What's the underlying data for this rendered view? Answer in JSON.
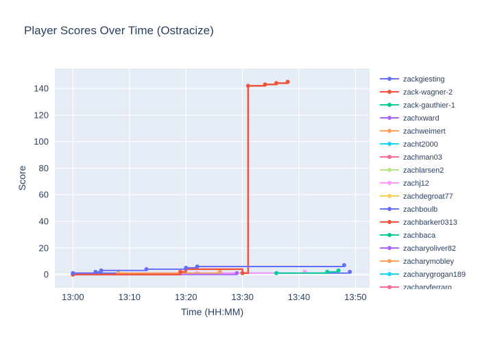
{
  "chart_data": {
    "type": "line",
    "title": "Player Scores Over Time (Ostracize)",
    "xlabel": "Time (HH:MM)",
    "ylabel": "Score",
    "x_ticks": [
      "13:00",
      "13:10",
      "13:20",
      "13:30",
      "13:40",
      "13:50"
    ],
    "y_ticks": [
      0,
      20,
      40,
      60,
      80,
      100,
      120,
      140
    ],
    "xlim_minutes": [
      -3.2,
      52.5
    ],
    "ylim": [
      -10,
      155
    ],
    "grid": true,
    "legend_position": "right",
    "colors": {
      "plot_bg": "#e5ecf6",
      "grid": "#ffffff",
      "text": "#2a3f5f",
      "palette": [
        "#636efa",
        "#ef553b",
        "#00cc96",
        "#ab63fa",
        "#ffa15a",
        "#19d3f3",
        "#ff6692",
        "#b6e880",
        "#ff97ff",
        "#fecb52"
      ]
    },
    "series": [
      {
        "name": "zackgiesting",
        "color": "#636efa",
        "x": [
          "13:00",
          "13:04",
          "13:05",
          "13:13",
          "13:20",
          "13:22",
          "13:48"
        ],
        "y": [
          1,
          2,
          3,
          4,
          5,
          6,
          7
        ]
      },
      {
        "name": "zack-wagner-2",
        "color": "#ef553b",
        "x": [
          "13:00",
          "13:19",
          "13:20",
          "13:30",
          "13:31",
          "13:34",
          "13:36",
          "13:38"
        ],
        "y": [
          0,
          2,
          4,
          1,
          142,
          143,
          144,
          145
        ]
      },
      {
        "name": "zack-gauthier-1",
        "color": "#00cc96",
        "x": [
          "13:36",
          "13:45",
          "13:47"
        ],
        "y": [
          1,
          2,
          3
        ]
      },
      {
        "name": "zachxward",
        "color": "#ab63fa",
        "x": [
          "13:00",
          "13:29"
        ],
        "y": [
          0,
          1
        ]
      },
      {
        "name": "zachweimert",
        "color": "#ffa15a",
        "x": [
          "13:00",
          "13:08",
          "13:26"
        ],
        "y": [
          0,
          1,
          2
        ]
      },
      {
        "name": "zacht2000",
        "color": "#19d3f3",
        "x": [
          "13:00",
          "13:19"
        ],
        "y": [
          0,
          1
        ]
      },
      {
        "name": "zachman03",
        "color": "#ff6692",
        "x": [
          "13:00"
        ],
        "y": [
          0
        ]
      },
      {
        "name": "zachlarsen2",
        "color": "#b6e880",
        "x": [
          "13:00"
        ],
        "y": [
          0
        ]
      },
      {
        "name": "zachj12",
        "color": "#ff97ff",
        "x": [
          "13:00",
          "13:22",
          "13:41"
        ],
        "y": [
          0,
          1,
          2
        ]
      },
      {
        "name": "zachdegroat77",
        "color": "#fecb52",
        "x": [
          "13:00"
        ],
        "y": [
          0
        ]
      },
      {
        "name": "zachboulb",
        "color": "#636efa",
        "x": [
          "13:00",
          "13:49"
        ],
        "y": [
          1,
          2
        ]
      },
      {
        "name": "zachbarker0313",
        "color": "#ef553b",
        "x": [
          "13:00"
        ],
        "y": [
          0
        ]
      },
      {
        "name": "zachbaca",
        "color": "#00cc96",
        "x": [
          "13:00"
        ],
        "y": [
          0
        ]
      },
      {
        "name": "zacharyoliver82",
        "color": "#ab63fa",
        "x": [
          "13:00"
        ],
        "y": [
          0
        ]
      },
      {
        "name": "zacharymobley",
        "color": "#ffa15a",
        "x": [
          "13:00"
        ],
        "y": [
          0
        ]
      },
      {
        "name": "zacharygrogan189",
        "color": "#19d3f3",
        "x": [
          "13:00"
        ],
        "y": [
          0
        ]
      },
      {
        "name": "zacharyferraro",
        "color": "#ff6692",
        "x": [
          "13:00"
        ],
        "y": [
          0
        ]
      }
    ]
  }
}
